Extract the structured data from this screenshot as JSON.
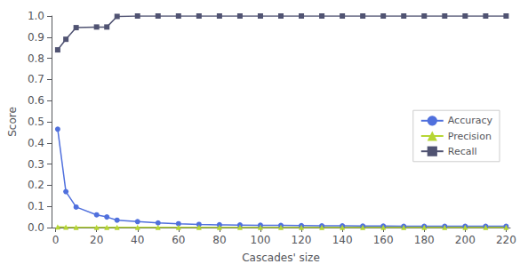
{
  "chart_data": {
    "type": "line",
    "xlabel": "Cascades' size",
    "ylabel": "Score",
    "x": [
      1,
      5,
      10,
      20,
      25,
      30,
      40,
      50,
      60,
      70,
      80,
      90,
      100,
      110,
      120,
      130,
      140,
      150,
      160,
      170,
      180,
      190,
      200,
      210,
      220
    ],
    "series": [
      {
        "name": "Accuracy",
        "marker": "circle",
        "values": [
          0.465,
          0.17,
          0.097,
          0.06,
          0.05,
          0.035,
          0.028,
          0.022,
          0.018,
          0.015,
          0.013,
          0.012,
          0.011,
          0.01,
          0.009,
          0.008,
          0.008,
          0.007,
          0.007,
          0.006,
          0.006,
          0.006,
          0.006,
          0.006,
          0.006
        ]
      },
      {
        "name": "Precision",
        "marker": "triangle",
        "values": [
          0.003,
          0.002,
          0.001,
          0.001,
          0.001,
          0.001,
          0.001,
          0.001,
          0.001,
          0.001,
          0.001,
          0.001,
          0.001,
          0.001,
          0.001,
          0.001,
          0.001,
          0.001,
          0.001,
          0.001,
          0.001,
          0.001,
          0.001,
          0.001,
          0.001
        ]
      },
      {
        "name": "Recall",
        "marker": "square",
        "values": [
          0.84,
          0.89,
          0.945,
          0.948,
          0.948,
          0.998,
          1.0,
          1.0,
          1.0,
          1.0,
          1.0,
          1.0,
          1.0,
          1.0,
          1.0,
          1.0,
          1.0,
          1.0,
          1.0,
          1.0,
          1.0,
          1.0,
          1.0,
          1.0,
          1.0
        ]
      }
    ],
    "xlim": [
      -2,
      222
    ],
    "xticks": [
      0,
      20,
      40,
      60,
      80,
      100,
      120,
      140,
      160,
      180,
      200,
      220
    ],
    "ylim": [
      0.0,
      1.0
    ],
    "yticks": [
      {
        "value": 0.0,
        "label": "0.0"
      },
      0.1,
      0.2,
      0.3,
      0.4,
      0.5,
      0.6,
      0.7,
      0.8,
      0.9,
      {
        "value": 1.0,
        "label": "1.0"
      }
    ],
    "grid": false,
    "legend": "center right"
  }
}
